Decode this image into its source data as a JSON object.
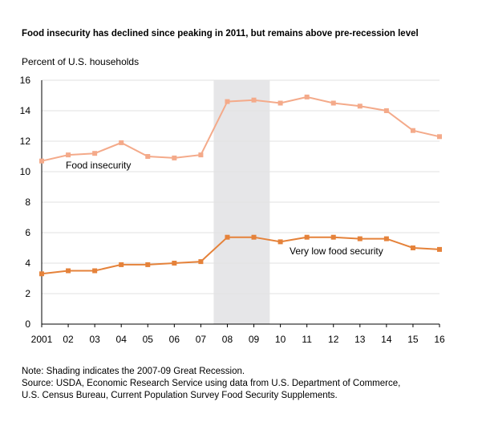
{
  "chart_data": {
    "type": "line",
    "title": "Food insecurity has declined since peaking in 2011, but remains above pre-recession level",
    "ylabel": "Percent of U.S. households",
    "xlabel": "",
    "x": [
      "2001",
      "02",
      "03",
      "04",
      "05",
      "06",
      "07",
      "08",
      "09",
      "10",
      "11",
      "12",
      "13",
      "14",
      "15",
      "16"
    ],
    "ylim": [
      0,
      16
    ],
    "yticks": [
      0,
      2,
      4,
      6,
      8,
      10,
      12,
      14,
      16
    ],
    "grid": true,
    "shaded_region": {
      "from": "2007",
      "to": "2009",
      "note": "2007-09 Great Recession",
      "color": "#e6e6e8"
    },
    "series": [
      {
        "name": "Food insecurity",
        "color": "#f4aa8a",
        "values": [
          10.7,
          11.1,
          11.2,
          11.9,
          11.0,
          10.9,
          11.1,
          14.6,
          14.7,
          14.5,
          14.9,
          14.5,
          14.3,
          14.0,
          12.7,
          12.3
        ]
      },
      {
        "name": "Very low food security",
        "color": "#e5823a",
        "values": [
          3.3,
          3.5,
          3.5,
          3.9,
          3.9,
          4.0,
          4.1,
          5.7,
          5.7,
          5.4,
          5.7,
          5.7,
          5.6,
          5.6,
          5.0,
          4.9
        ]
      }
    ]
  },
  "notes": {
    "line1": "Note: Shading indicates the 2007-09 Great Recession.",
    "line2": "Source: USDA, Economic Research Service using data from U.S. Department of Commerce,",
    "line3": "U.S. Census Bureau, Current Population Survey Food Security Supplements."
  }
}
